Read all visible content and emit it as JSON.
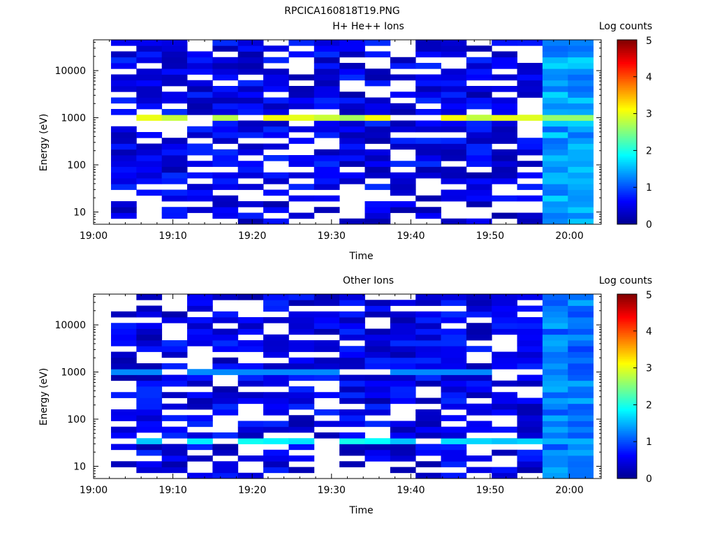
{
  "figure": {
    "title": "RPCICA160818T19.PNG"
  },
  "colors": {
    "scale": [
      "#00008f",
      "#0000ff",
      "#0080ff",
      "#00ffff",
      "#80ff80",
      "#ffff00",
      "#ff8000",
      "#ff0000",
      "#800000"
    ],
    "background": "#ffffff",
    "axis": "#000000"
  },
  "chart_data": [
    {
      "type": "heatmap",
      "title": "H+ He++ Ions",
      "xlabel": "Time",
      "ylabel": "Energy (eV)",
      "xticks": [
        "19:00",
        "19:10",
        "19:20",
        "19:30",
        "19:40",
        "19:50",
        "20:00"
      ],
      "yticks": [
        "10",
        "100",
        "1000",
        "10000"
      ],
      "yscale": "log",
      "colorbar": {
        "label": "Log counts",
        "ticks": [
          "0",
          "1",
          "2",
          "3",
          "4",
          "5"
        ],
        "range": [
          0,
          5
        ]
      },
      "x_range_minutes": [
        0,
        64
      ],
      "y_range_eV": [
        5.5,
        45000
      ],
      "data_x_range_minutes": [
        2.2,
        63
      ],
      "columns": 19,
      "rows": 32,
      "emission_line_eV": 1000,
      "emission_line_level": 2.9,
      "transition_minute": 53.6,
      "post_transition_level": 1.4,
      "seed": 7
    },
    {
      "type": "heatmap",
      "title": "Other Ions",
      "xlabel": "Time",
      "ylabel": "Energy (eV)",
      "xticks": [
        "19:00",
        "19:10",
        "19:20",
        "19:30",
        "19:40",
        "19:50",
        "20:00"
      ],
      "yticks": [
        "10",
        "100",
        "1000",
        "10000"
      ],
      "yscale": "log",
      "colorbar": {
        "label": "Log counts",
        "ticks": [
          "0",
          "1",
          "2",
          "3",
          "4",
          "5"
        ],
        "range": [
          0,
          5
        ]
      },
      "x_range_minutes": [
        0,
        64
      ],
      "y_range_eV": [
        5.5,
        45000
      ],
      "data_x_range_minutes": [
        2.2,
        63
      ],
      "columns": 19,
      "rows": 32,
      "emission_line_eV": 35,
      "emission_line_level": 1.8,
      "secondary_line_eV": 1050,
      "secondary_line_level": 1.3,
      "transition_minute": 53.6,
      "post_transition_level": 1.2,
      "seed": 13
    }
  ]
}
